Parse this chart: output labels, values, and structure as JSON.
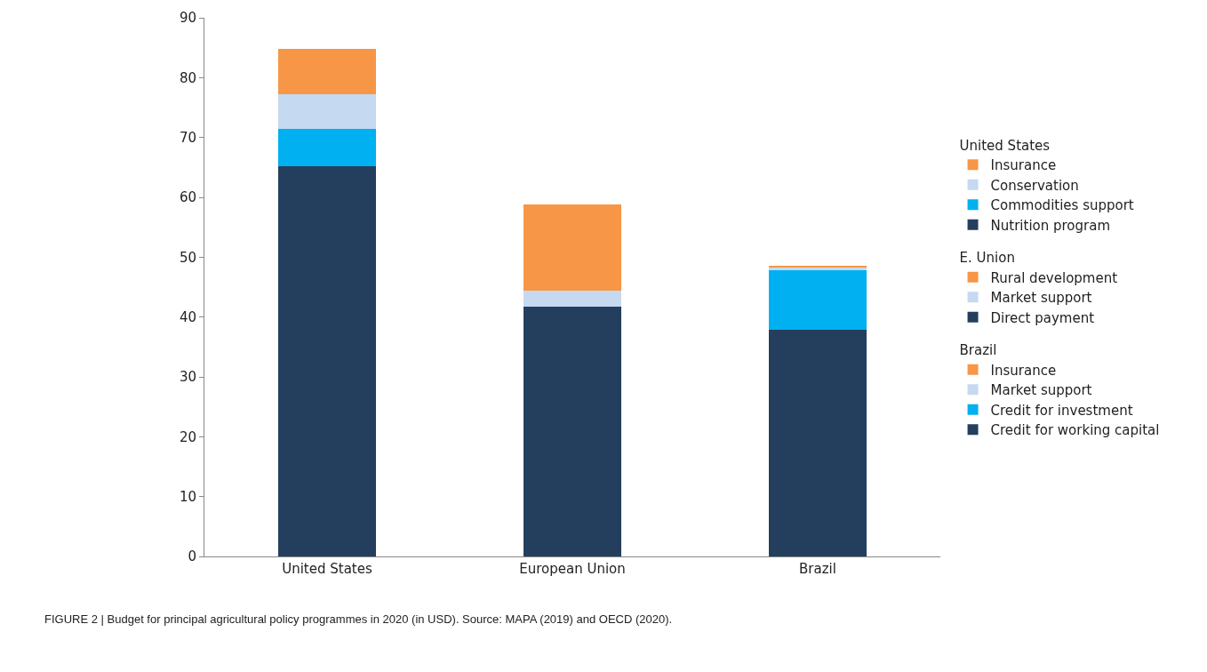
{
  "chart_data": {
    "type": "bar",
    "stacked": true,
    "categories": [
      "United States",
      "European Union",
      "Brazil"
    ],
    "series": [
      {
        "name": "Nutrition program",
        "color": "#243f5e",
        "values": [
          65.2,
          null,
          null
        ]
      },
      {
        "name": "Commodities support",
        "color": "#00b0f0",
        "values": [
          6.2,
          null,
          null
        ]
      },
      {
        "name": "Conservation",
        "color": "#c5d9f1",
        "values": [
          5.8,
          null,
          null
        ]
      },
      {
        "name": "Insurance",
        "color": "#f79646",
        "values": [
          7.6,
          null,
          null
        ]
      },
      {
        "name": "Direct payment",
        "color": "#243f5e",
        "values": [
          null,
          41.8,
          null
        ]
      },
      {
        "name": "Market support",
        "color": "#c5d9f1",
        "values": [
          null,
          2.6,
          null
        ]
      },
      {
        "name": "Rural development",
        "color": "#f79646",
        "values": [
          null,
          14.4,
          null
        ]
      },
      {
        "name": "Credit for working capital",
        "color": "#243f5e",
        "values": [
          null,
          null,
          37.8
        ]
      },
      {
        "name": "Credit for investment",
        "color": "#00b0f0",
        "values": [
          null,
          null,
          10.0
        ]
      },
      {
        "name": "Market support",
        "color": "#c5d9f1",
        "values": [
          null,
          null,
          0.4
        ]
      },
      {
        "name": "Insurance",
        "color": "#f79646",
        "values": [
          null,
          null,
          0.3
        ]
      }
    ],
    "ylim": [
      0,
      90
    ],
    "yticks": [
      0,
      10,
      20,
      30,
      40,
      50,
      60,
      70,
      80,
      90
    ],
    "legend": "right",
    "annotations": [
      "United States",
      "E. Union",
      "Brazil",
      "FIGURE 2 | Budget for principal agricultural policy programmes in 2020 (in USD). Source: MAPA (2019) and OECD (2020)."
    ]
  }
}
